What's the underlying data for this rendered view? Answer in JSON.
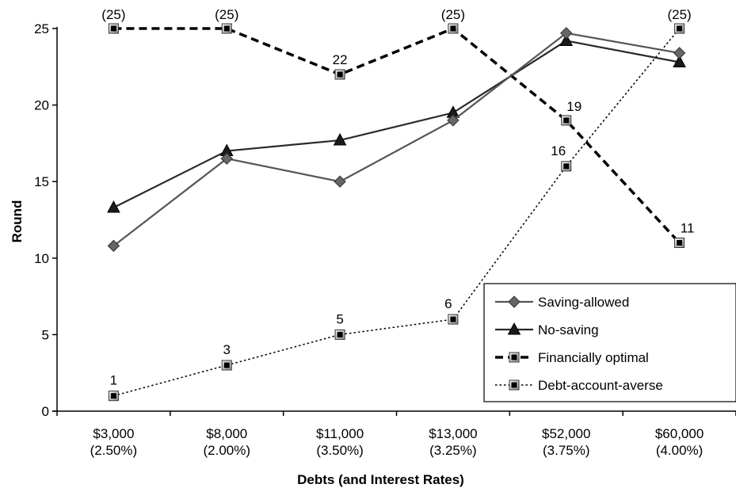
{
  "chart_data": {
    "type": "line",
    "title": "",
    "xlabel": "Debts (and Interest Rates)",
    "ylabel": "Round",
    "ylim": [
      0,
      25
    ],
    "yticks": [
      0,
      5,
      10,
      15,
      20,
      25
    ],
    "grid": false,
    "legend_position": "bottom-right",
    "categories": [
      [
        "$3,000",
        "(2.50%)"
      ],
      [
        "$8,000",
        "(2.00%)"
      ],
      [
        "$11,000",
        "(3.50%)"
      ],
      [
        "$13,000",
        "(3.25%)"
      ],
      [
        "$52,000",
        "(3.75%)"
      ],
      [
        "$60,000",
        "(4.00%)"
      ]
    ],
    "series": [
      {
        "name": "Saving-allowed",
        "values": [
          10.8,
          16.5,
          15.0,
          19.0,
          24.7,
          23.4
        ],
        "marker": "diamond",
        "color": "#555555",
        "dash": "solid",
        "labels": null
      },
      {
        "name": "No-saving",
        "values": [
          13.3,
          17.0,
          17.7,
          19.5,
          24.2,
          22.8
        ],
        "marker": "triangle",
        "color": "#2a2a2a",
        "dash": "solid",
        "labels": null
      },
      {
        "name": "Financially optimal",
        "values": [
          25,
          25,
          22,
          25,
          19,
          11
        ],
        "marker": "square",
        "color": "#000000",
        "dash": "dashed",
        "labels": [
          "(25)",
          "(25)",
          "22",
          "(25)",
          "19",
          "11"
        ]
      },
      {
        "name": "Debt-account-averse",
        "values": [
          1,
          3,
          5,
          6,
          16,
          25
        ],
        "marker": "square",
        "color": "#000000",
        "dash": "dotted",
        "labels": [
          "1",
          "3",
          "5",
          "6",
          "16",
          "(25)"
        ]
      }
    ]
  }
}
